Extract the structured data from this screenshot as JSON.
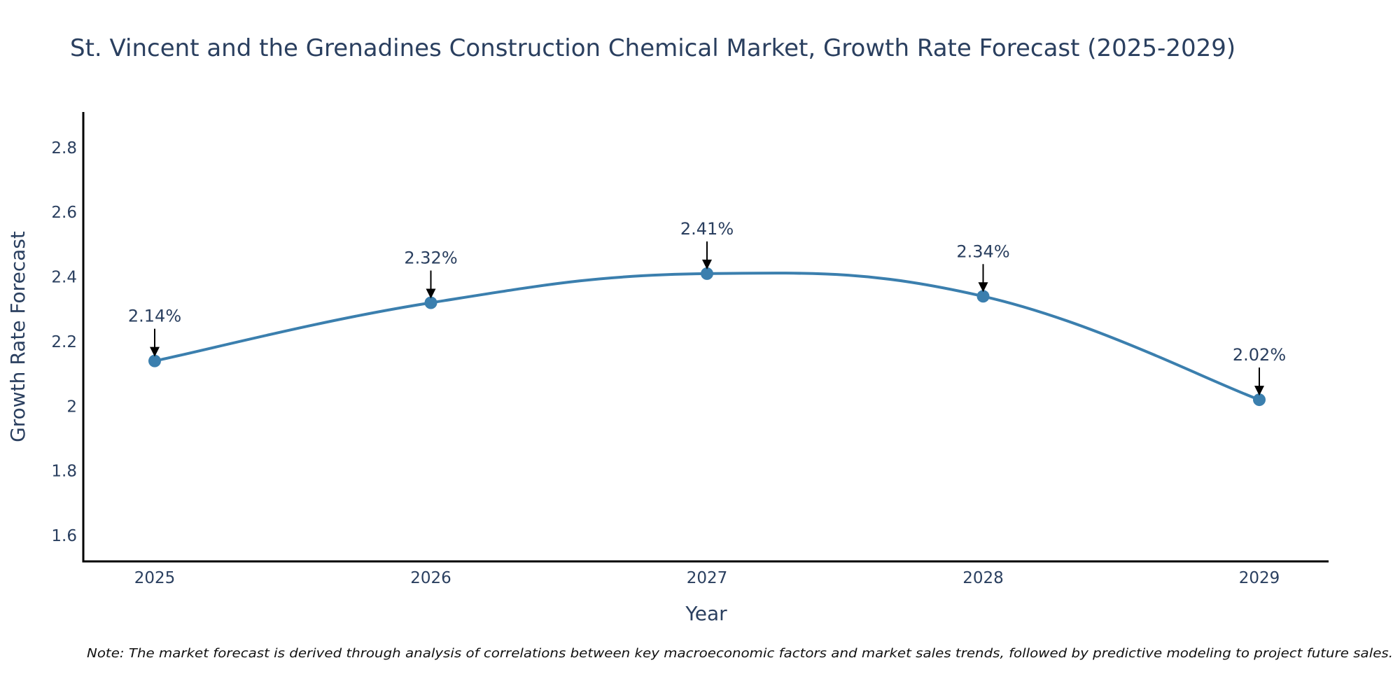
{
  "chart_data": {
    "type": "line",
    "title": "St. Vincent and the Grenadines Construction Chemical Market, Growth Rate Forecast (2025-2029)",
    "xlabel": "Year",
    "ylabel": "Growth Rate Forecast",
    "categories": [
      "2025",
      "2026",
      "2027",
      "2028",
      "2029"
    ],
    "values": [
      2.14,
      2.32,
      2.41,
      2.34,
      2.02
    ],
    "data_labels": [
      "2.14%",
      "2.32%",
      "2.41%",
      "2.34%",
      "2.02%"
    ],
    "ylim": [
      1.52,
      2.91
    ],
    "yticks": [
      1.6,
      1.8,
      2,
      2.2,
      2.4,
      2.6,
      2.8
    ],
    "ytick_labels": [
      "1.6",
      "1.8",
      "2",
      "2.2",
      "2.4",
      "2.6",
      "2.8"
    ],
    "grid": false,
    "line_shape": "spline",
    "line_color": "#3b7fae",
    "text_color": "#2a3f5f",
    "annotation": "Note: The market forecast is derived through analysis of correlations between key macroeconomic factors and market sales trends, followed by predictive modeling to project future sales."
  }
}
